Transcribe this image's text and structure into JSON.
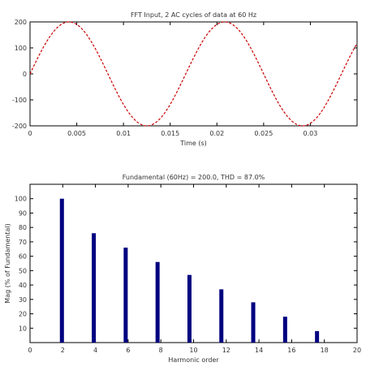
{
  "chart_data": [
    {
      "type": "line",
      "title": "FFT Input, 2 AC cycles of data at 60 Hz",
      "xlabel": "Time (s)",
      "ylabel": "",
      "xlim": [
        0,
        0.035
      ],
      "ylim": [
        -200,
        200
      ],
      "xticks": [
        0,
        0.005,
        0.01,
        0.015,
        0.02,
        0.025,
        0.03
      ],
      "xtick_labels": [
        "0",
        "0.005",
        "0.01",
        "0.015",
        "0.02",
        "0.025",
        "0.03"
      ],
      "yticks": [
        -200,
        -100,
        0,
        100,
        200
      ],
      "ytick_labels": [
        "-200",
        "-100",
        "0",
        "100",
        "200"
      ],
      "grid": false,
      "series": [
        {
          "amplitude": 200,
          "frequency_hz": 60,
          "color": "#cc0000",
          "line_style": "dashed"
        }
      ]
    },
    {
      "type": "bar",
      "title": "Fundamental (60Hz) = 200.0, THD = 87.0%",
      "xlabel": "Harmonic order",
      "ylabel": "Mag (% of Fundamental)",
      "xlim": [
        0,
        20
      ],
      "ylim": [
        0,
        110
      ],
      "xticks": [
        0,
        2,
        4,
        6,
        8,
        10,
        12,
        14,
        16,
        18,
        20
      ],
      "xtick_labels": [
        "0",
        "2",
        "4",
        "6",
        "8",
        "10",
        "12",
        "14",
        "16",
        "18",
        "20"
      ],
      "yticks": [
        10,
        20,
        30,
        40,
        50,
        60,
        70,
        80,
        90,
        100
      ],
      "ytick_labels": [
        "10",
        "20",
        "30",
        "40",
        "50",
        "60",
        "70",
        "80",
        "90",
        "100"
      ],
      "grid": false,
      "categories": [
        1.95,
        3.9,
        5.85,
        7.8,
        9.75,
        11.7,
        13.65,
        15.6,
        17.55,
        19.5
      ],
      "values": [
        100,
        76,
        66,
        56,
        47,
        37,
        28,
        18,
        8,
        0
      ],
      "bar_color": "#000080"
    }
  ]
}
